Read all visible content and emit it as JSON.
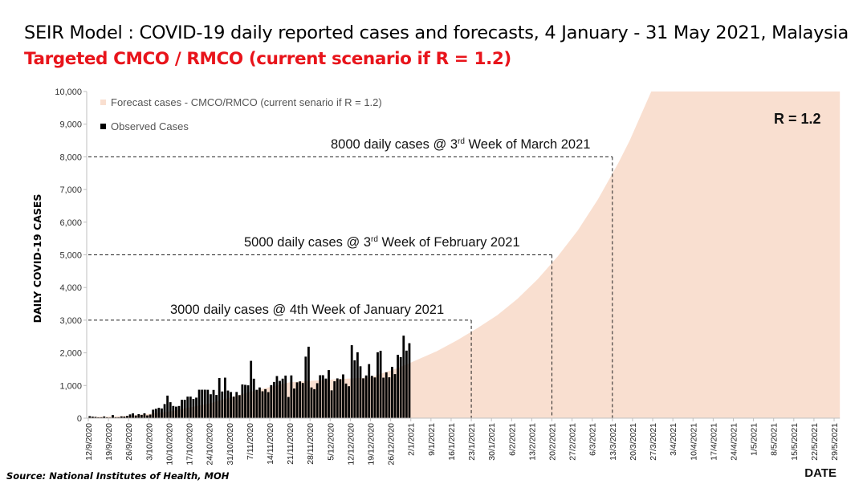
{
  "header": {
    "title": "SEIR Model : COVID-19 daily reported cases and forecasts, 4 January - 31 May 2021, Malaysia",
    "subtitle": "Targeted CMCO / RMCO (current scenario if R = 1.2)"
  },
  "footer": {
    "source": "Source: National Institutes of Health, MOH"
  },
  "colors": {
    "forecast_fill": "#f9dfd0",
    "observed_bar": "#000000",
    "subtitle": "#e8141b"
  },
  "chart_data": {
    "type": "bar",
    "title": "SEIR Model : COVID-19 daily reported cases and forecasts, 4 January - 31 May 2021, Malaysia",
    "subtitle": "Targeted CMCO / RMCO (current scenario if R = 1.2)",
    "xlabel": "DATE",
    "ylabel": "DAILY COVID-19 CASES",
    "ylim": [
      0,
      10000
    ],
    "yticks": [
      0,
      1000,
      2000,
      3000,
      4000,
      5000,
      6000,
      7000,
      8000,
      9000,
      10000
    ],
    "ytick_labels": [
      "0",
      "1,000",
      "2,000",
      "3,000",
      "4,000",
      "5,000",
      "6,000",
      "7,000",
      "8,000",
      "9,000",
      "10,000"
    ],
    "x_start_date": "12/9/2020",
    "x_total_days": 261,
    "xtick_labels": [
      "12/9/2020",
      "19/9/2020",
      "26/9/2020",
      "3/10/2020",
      "10/10/2020",
      "17/10/2020",
      "24/10/2020",
      "31/10/2020",
      "7/11/2020",
      "14/11/2020",
      "21/11/2020",
      "28/11/2020",
      "5/12/2020",
      "12/12/2020",
      "19/12/2020",
      "26/12/2020",
      "2/1/2021",
      "9/1/2021",
      "16/1/2021",
      "23/1/2021",
      "30/1/2021",
      "6/2/2021",
      "13/2/2021",
      "20/2/2021",
      "27/2/2021",
      "6/3/2021",
      "13/3/2021",
      "20/3/2021",
      "27/3/2021",
      "3/4/2021",
      "10/4/2021",
      "17/4/2021",
      "24/4/2021",
      "1/5/2021",
      "8/5/2021",
      "15/5/2021",
      "22/5/2021",
      "29/5/2021"
    ],
    "grid": false,
    "legend_position": "top-left",
    "legend": [
      {
        "label": "Forecast cases - CMCO/RMCO (current senario if R = 1.2)",
        "type": "area"
      },
      {
        "label": "Observed Cases",
        "type": "bar"
      }
    ],
    "series": [
      {
        "name": "Observed Cases",
        "type": "bar",
        "start_day": 0,
        "values": [
          62,
          47,
          38,
          25,
          26,
          53,
          24,
          20,
          95,
          26,
          26,
          55,
          50,
          69,
          115,
          147,
          82,
          125,
          101,
          150,
          85,
          111,
          260,
          287,
          317,
          297,
          432,
          691,
          489,
          374,
          354,
          373,
          563,
          563,
          660,
          660,
          589,
          629,
          871,
          871,
          871,
          869,
          732,
          865,
          710,
          1228,
          817,
          1240,
          846,
          801,
          659,
          802,
          705,
          1032,
          1021,
          1006,
          1755,
          1208,
          869,
          941,
          823,
          888,
          798,
          1012,
          1109,
          1290,
          1142,
          1210,
          1304,
          649,
          1309,
          908,
          1097,
          1126,
          1076,
          1884,
          2188,
          941,
          888,
          1071,
          1315,
          1315,
          1212,
          1472,
          851,
          1129,
          1218,
          1193,
          1340,
          1060,
          978,
          2234,
          1772,
          2018,
          1589,
          1219,
          1308,
          1655,
          1295,
          1247,
          2018,
          2062,
          1240,
          1405,
          1251,
          1571,
          1349,
          1939,
          1870,
          2525,
          2068,
          2295
        ]
      },
      {
        "name": "Forecast cases - CMCO/RMCO (current senario if R = 1.2)",
        "type": "area",
        "points": [
          [
            0,
            40
          ],
          [
            14,
            70
          ],
          [
            28,
            200
          ],
          [
            42,
            450
          ],
          [
            56,
            800
          ],
          [
            70,
            1100
          ],
          [
            84,
            1180
          ],
          [
            98,
            1250
          ],
          [
            108,
            1550
          ],
          [
            114,
            1780
          ],
          [
            121,
            2050
          ],
          [
            128,
            2380
          ],
          [
            135,
            2750
          ],
          [
            142,
            3150
          ],
          [
            149,
            3650
          ],
          [
            156,
            4250
          ],
          [
            163,
            4950
          ],
          [
            170,
            5750
          ],
          [
            177,
            6700
          ],
          [
            184,
            7800
          ],
          [
            188,
            8500
          ],
          [
            192,
            9300
          ],
          [
            195.5,
            10000
          ],
          [
            261,
            10000
          ]
        ]
      }
    ],
    "annotations": [
      {
        "text_main": "3000 daily cases @ 4th Week of January 2021",
        "text_sup": "",
        "y": 3000,
        "x_date": "23/1/2021"
      },
      {
        "text_main": "5000 daily cases @ 3",
        "text_sup": "rd",
        "text_tail": " Week of February 2021",
        "y": 5000,
        "x_date": "20/2/2021"
      },
      {
        "text_main": "8000 daily cases @ 3",
        "text_sup": "rd",
        "text_tail": " Week of March 2021",
        "y": 8000,
        "x_date": "13/3/2021"
      }
    ],
    "r_label": "R = 1.2"
  }
}
